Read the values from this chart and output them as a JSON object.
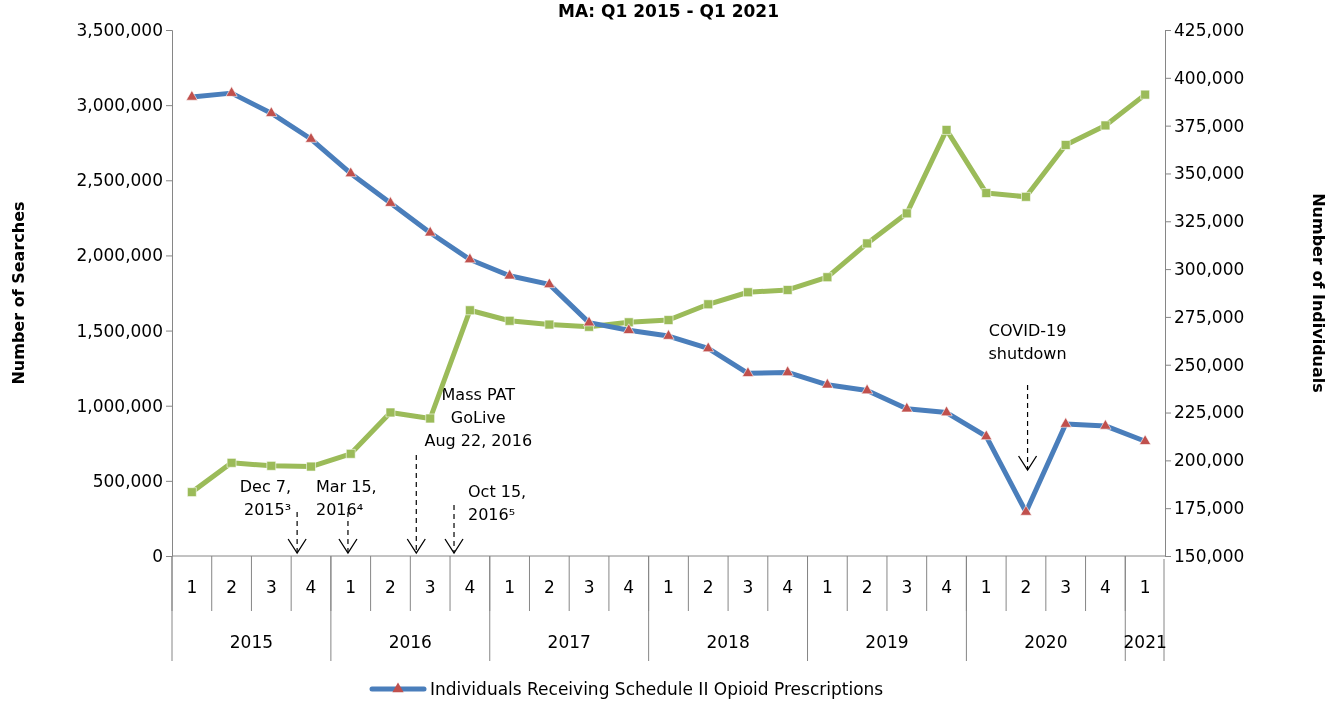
{
  "chart_data": {
    "type": "line",
    "title": "MA: Q1 2015 - Q1 2021",
    "ylabel": "Number of Searches",
    "y2label": "Number of Individuals",
    "categories": [
      "1",
      "2",
      "3",
      "4",
      "1",
      "2",
      "3",
      "4",
      "1",
      "2",
      "3",
      "4",
      "1",
      "2",
      "3",
      "4",
      "1",
      "2",
      "3",
      "4",
      "1",
      "2",
      "3",
      "4",
      "1"
    ],
    "ylim": [
      0,
      3500000
    ],
    "yticks": [
      {
        "value": 0,
        "label": "0"
      },
      {
        "value": 500000,
        "label": "500,000"
      },
      {
        "value": 1000000,
        "label": "1,000,000"
      },
      {
        "value": 1500000,
        "label": "1,500,000"
      },
      {
        "value": 2000000,
        "label": "2,000,000"
      },
      {
        "value": 2500000,
        "label": "2,500,000"
      },
      {
        "value": 3000000,
        "label": "3,000,000"
      },
      {
        "value": 3500000,
        "label": "3,500,000"
      }
    ],
    "y2lim": [
      150000,
      425000
    ],
    "y2ticks": [
      {
        "value": 150000,
        "label": "150,000"
      },
      {
        "value": 175000,
        "label": "175,000"
      },
      {
        "value": 200000,
        "label": "200,000"
      },
      {
        "value": 225000,
        "label": "225,000"
      },
      {
        "value": 250000,
        "label": "250,000"
      },
      {
        "value": 275000,
        "label": "275,000"
      },
      {
        "value": 300000,
        "label": "300,000"
      },
      {
        "value": 325000,
        "label": "325,000"
      },
      {
        "value": 350000,
        "label": "350,000"
      },
      {
        "value": 375000,
        "label": "375,000"
      },
      {
        "value": 400000,
        "label": "400,000"
      },
      {
        "value": 425000,
        "label": "425,000"
      }
    ],
    "series": [
      {
        "name": "Individuals Receiving Schedule II Opioid Prescriptions",
        "color": "#4a7ebb",
        "axis": "y2",
        "marker": "triangle",
        "values": [
          390000,
          392000,
          381500,
          368000,
          350000,
          334500,
          319000,
          305000,
          296500,
          292000,
          272000,
          268000,
          265000,
          258500,
          245500,
          246000,
          239500,
          236500,
          227000,
          225000,
          212500,
          173000,
          219000,
          218000,
          210000
        ]
      },
      {
        "color": "#9bbb59",
        "marker": "square",
        "values": [
          425000,
          620000,
          600000,
          595000,
          680000,
          955000,
          915000,
          1635000,
          1565000,
          1540000,
          1525000,
          1555000,
          1570000,
          1675000,
          1755000,
          1770000,
          1855000,
          2080000,
          2280000,
          2835000,
          2415000,
          2390000,
          2735000,
          2865000,
          3070000
        ]
      }
    ],
    "annotations": [
      "2015",
      "2016",
      "2017",
      "2018",
      "2019",
      "2020",
      "2021",
      "Dec  7,\n2015³",
      "Mar 15,\n2016⁴",
      "Mass PAT\nGoLive\nAug 22, 2016",
      "Oct 15,\n2016⁵",
      "COVID-19\nshutdown"
    ],
    "legend": "bottom"
  }
}
